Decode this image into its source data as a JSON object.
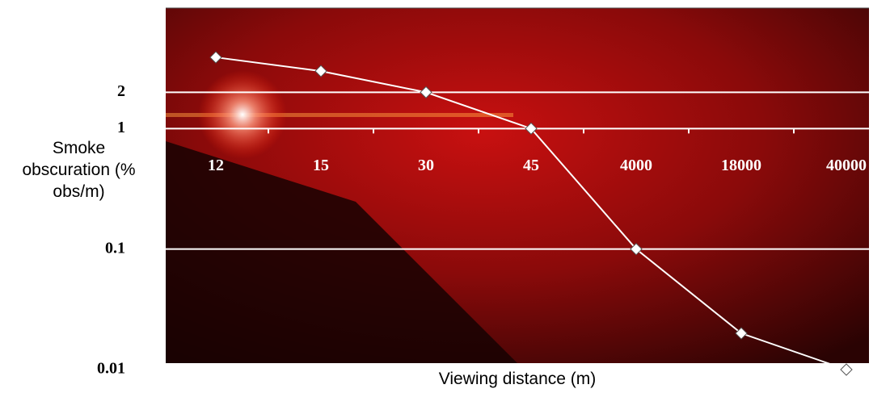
{
  "chart_data": {
    "type": "line",
    "xlabel": "Viewing distance (m)",
    "ylabel": "Smoke obscuration (% obs/m)",
    "categories": [
      "12",
      "15",
      "30",
      "45",
      "4000",
      "18000",
      "40000"
    ],
    "series": [
      {
        "color": "#ffffff",
        "values": [
          3.9,
          3,
          2,
          1,
          0.1,
          0.02,
          0.01
        ]
      }
    ],
    "ylim": [
      0.01,
      10
    ],
    "yticks": [
      0.01,
      0.1,
      1,
      2
    ],
    "log_y": true,
    "grid": true
  }
}
